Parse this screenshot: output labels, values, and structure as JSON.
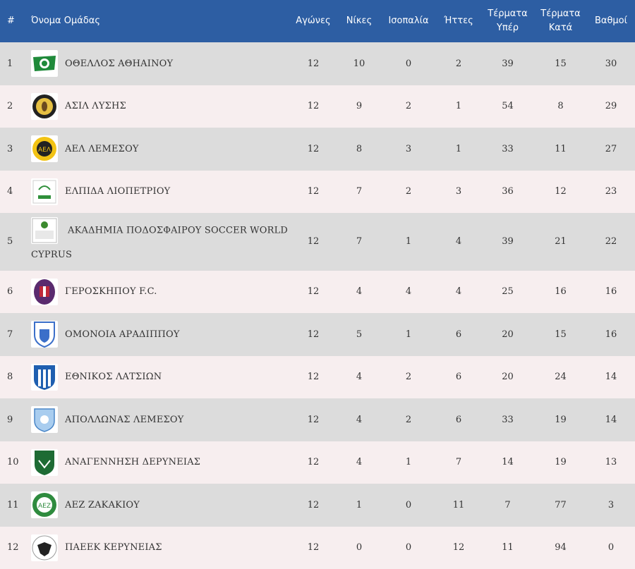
{
  "headers": {
    "rank": "#",
    "team": "Όνομα Ομάδας",
    "played": "Αγώνες",
    "wins": "Νίκες",
    "draws": "Ισοπαλία",
    "losses": "Ήττες",
    "goals_for_1": "Τέρματα",
    "goals_for_2": "Υπέρ",
    "goals_against_1": "Τέρματα",
    "goals_against_2": "Κατά",
    "points": "Βαθμοί"
  },
  "colors": {
    "header_bg": "#2d5ea3",
    "row_odd": "#dcdcdc",
    "row_even": "#f7eeef"
  },
  "rows": [
    {
      "rank": "1",
      "team": "ΟΘΕΛΛΟΣ ΑΘΗΑΙΝΟΥ",
      "logo": "othellos-crest-icon",
      "played": "12",
      "wins": "10",
      "draws": "0",
      "losses": "2",
      "gf": "39",
      "ga": "15",
      "pts": "30"
    },
    {
      "rank": "2",
      "team": "ΑΣΙΛ ΛΥΣΗΣ",
      "logo": "asil-crest-icon",
      "played": "12",
      "wins": "9",
      "draws": "2",
      "losses": "1",
      "gf": "54",
      "ga": "8",
      "pts": "29"
    },
    {
      "rank": "3",
      "team": "ΑΕΛ ΛΕΜΕΣΟΥ",
      "logo": "ael-crest-icon",
      "played": "12",
      "wins": "8",
      "draws": "3",
      "losses": "1",
      "gf": "33",
      "ga": "11",
      "pts": "27"
    },
    {
      "rank": "4",
      "team": "ΕΛΠΙΔΑ ΛΙΟΠΕΤΡΙΟΥ",
      "logo": "elpida-crest-icon",
      "played": "12",
      "wins": "7",
      "draws": "2",
      "losses": "3",
      "gf": "36",
      "ga": "12",
      "pts": "23"
    },
    {
      "rank": "5",
      "team": "ΑΚΑΔΗΜΙΑ ΠΟΔΟΣΦΑΙΡΟΥ SOCCER WORLD CYPRUS",
      "logo": "soccer-world-crest-icon",
      "played": "12",
      "wins": "7",
      "draws": "1",
      "losses": "4",
      "gf": "39",
      "ga": "21",
      "pts": "22"
    },
    {
      "rank": "6",
      "team": "ΓΕΡΟΣΚΗΠΟΥ F.C.",
      "logo": "geroskipou-crest-icon",
      "played": "12",
      "wins": "4",
      "draws": "4",
      "losses": "4",
      "gf": "25",
      "ga": "16",
      "pts": "16"
    },
    {
      "rank": "7",
      "team": "ΟΜΟΝΟΙΑ ΑΡΑΔΙΠΠΟΥ",
      "logo": "omonia-aradippou-crest-icon",
      "played": "12",
      "wins": "5",
      "draws": "1",
      "losses": "6",
      "gf": "20",
      "ga": "15",
      "pts": "16"
    },
    {
      "rank": "8",
      "team": "ΕΘΝΙΚΟΣ ΛΑΤΣΙΩΝ",
      "logo": "ethnikos-latsion-crest-icon",
      "played": "12",
      "wins": "4",
      "draws": "2",
      "losses": "6",
      "gf": "20",
      "ga": "24",
      "pts": "14"
    },
    {
      "rank": "9",
      "team": "ΑΠΟΛΛΩΝΑΣ ΛΕΜΕΣΟΥ",
      "logo": "apollon-crest-icon",
      "played": "12",
      "wins": "4",
      "draws": "2",
      "losses": "6",
      "gf": "33",
      "ga": "19",
      "pts": "14"
    },
    {
      "rank": "10",
      "team": "ΑΝΑΓΕΝΝΗΣΗ ΔΕΡΥΝΕΙΑΣ",
      "logo": "anagennisi-crest-icon",
      "played": "12",
      "wins": "4",
      "draws": "1",
      "losses": "7",
      "gf": "14",
      "ga": "19",
      "pts": "13"
    },
    {
      "rank": "11",
      "team": "ΑΕΖ ΖΑΚΑΚΙΟΥ",
      "logo": "aez-crest-icon",
      "played": "12",
      "wins": "1",
      "draws": "0",
      "losses": "11",
      "gf": "7",
      "ga": "77",
      "pts": "3"
    },
    {
      "rank": "12",
      "team": "ΠΑΕΕΚ ΚΕΡΥΝΕΙΑΣ",
      "logo": "paeek-crest-icon",
      "played": "12",
      "wins": "0",
      "draws": "0",
      "losses": "12",
      "gf": "11",
      "ga": "94",
      "pts": "0"
    }
  ]
}
